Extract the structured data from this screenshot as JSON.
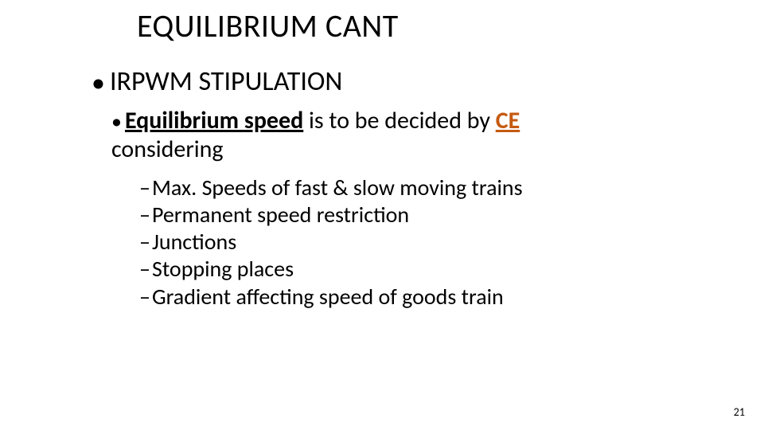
{
  "title": "EQUILIBRIUM CANT",
  "level1": {
    "bullet": "•",
    "text": "IRPWM STIPULATION"
  },
  "level2": {
    "bullet": "•",
    "bold_underlined": "Equilibrium speed",
    "mid_text": " is to be decided by ",
    "accent_bold_underlined": "CE",
    "tail_text": "considering"
  },
  "level3": {
    "dash": "–",
    "items": [
      "Max.  Speeds of fast & slow moving trains",
      "Permanent speed restriction",
      "Junctions",
      "Stopping places",
      "Gradient affecting speed of goods train"
    ]
  },
  "page_number": "21",
  "colors": {
    "text": "#000000",
    "accent": "#c55a11",
    "background": "#ffffff"
  }
}
